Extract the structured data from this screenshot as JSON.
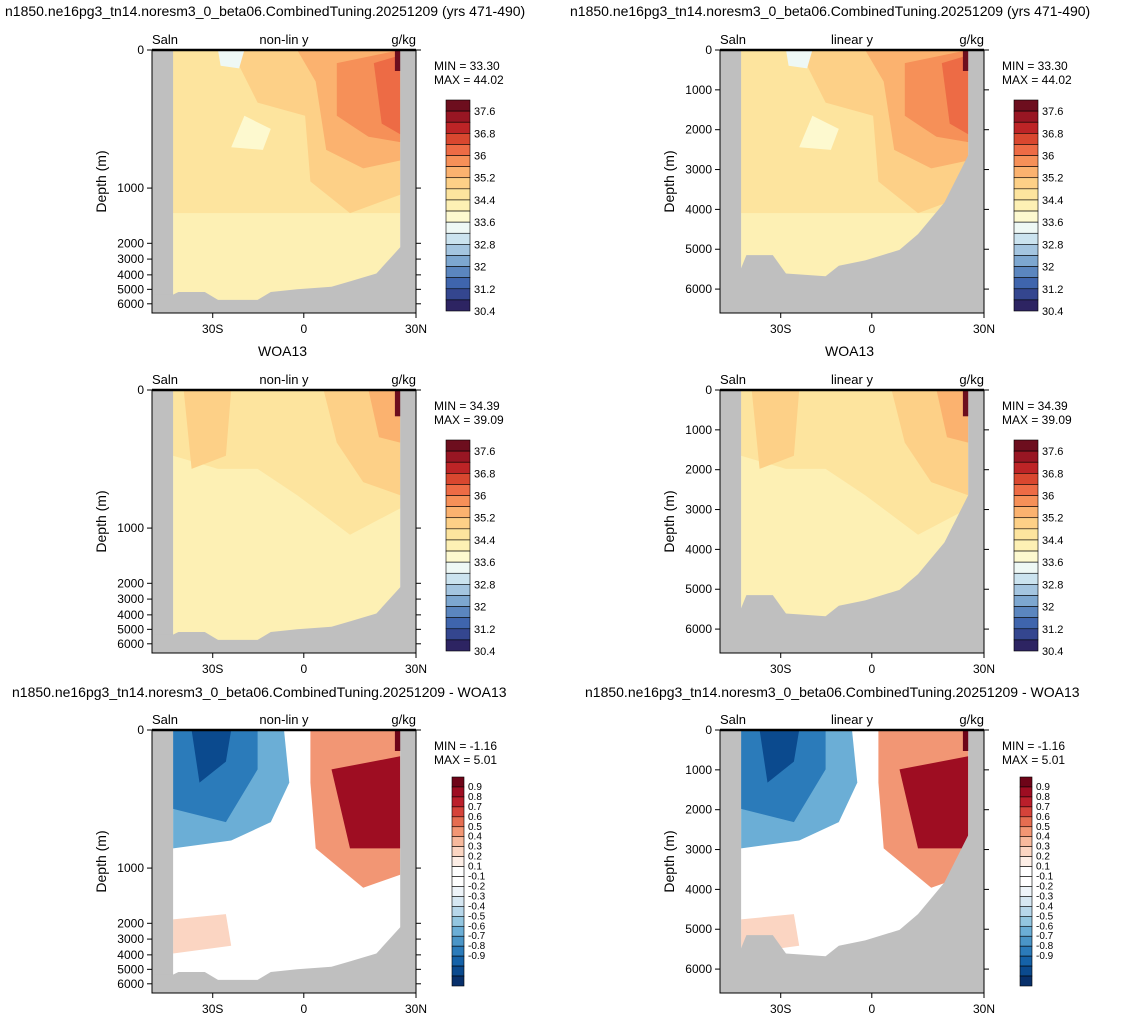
{
  "row_titles": [
    {
      "left": "n1850.ne16pg3_tn14.noresm3_0_beta06.CombinedTuning.20251209 (yrs 471-490)",
      "right": "n1850.ne16pg3_tn14.noresm3_0_beta06.CombinedTuning.20251209 (yrs 471-490)"
    },
    {
      "left": "WOA13",
      "right": "WOA13"
    },
    {
      "left": "n1850.ne16pg3_tn14.noresm3_0_beta06.CombinedTuning.20251209 - WOA13",
      "right": "n1850.ne16pg3_tn14.noresm3_0_beta06.CombinedTuning.20251209 - WOA13"
    }
  ],
  "colors": {
    "land": "#bfbfbf",
    "abs_levels": [
      "#2d2462",
      "#34468f",
      "#3f65ad",
      "#5b86bf",
      "#7da7d0",
      "#a4c5e0",
      "#cbe3ef",
      "#eef8f5",
      "#fdf9cf",
      "#fdf0b4",
      "#fde49e",
      "#fdd087",
      "#fbb26f",
      "#f69058",
      "#ed6b45",
      "#d9472f",
      "#bd2426",
      "#981623",
      "#6d0e1e"
    ],
    "diff_levels": [
      "#08306b",
      "#0b4a8e",
      "#1562a8",
      "#2b7bba",
      "#4a95c7",
      "#6baed6",
      "#93c6e0",
      "#b7d7ea",
      "#d6e7f2",
      "#eef4f9",
      "#ffffff",
      "#ffffff",
      "#fdeee6",
      "#fbd5c2",
      "#f7b99d",
      "#f29674",
      "#e56d51",
      "#d5433a",
      "#bb1f2b",
      "#9e0d22",
      "#6e0418"
    ]
  },
  "charts": [
    {
      "id": "model-nonlin",
      "min_label": "MIN =  33.30",
      "max_label": "MAX =  44.02",
      "chart_data": {
        "type": "heatmap",
        "variable": "Saln",
        "units": "g/kg",
        "title": "non-lin y",
        "xlabel": "",
        "ylabel": "Depth (m)",
        "x_ticks": [
          "30S",
          "0",
          "30N"
        ],
        "y_ticks": [
          "0",
          "1000",
          "2000",
          "3000",
          "4000",
          "5000",
          "6000"
        ],
        "y_scale": "non-linear",
        "colorbar_labels": [
          "37.6",
          "36.8",
          "36",
          "35.2",
          "34.4",
          "33.6",
          "32.8",
          "32",
          "31.2",
          "30.4"
        ],
        "min": 33.3,
        "max": 44.02
      }
    },
    {
      "id": "model-lin",
      "min_label": "MIN =  33.30",
      "max_label": "MAX =  44.02",
      "chart_data": {
        "type": "heatmap",
        "variable": "Saln",
        "units": "g/kg",
        "title": "linear y",
        "xlabel": "",
        "ylabel": "Depth (m)",
        "x_ticks": [
          "30S",
          "0",
          "30N"
        ],
        "y_ticks": [
          "0",
          "1000",
          "2000",
          "3000",
          "4000",
          "5000",
          "6000"
        ],
        "y_scale": "linear",
        "colorbar_labels": [
          "37.6",
          "36.8",
          "36",
          "35.2",
          "34.4",
          "33.6",
          "32.8",
          "32",
          "31.2",
          "30.4"
        ],
        "min": 33.3,
        "max": 44.02
      }
    },
    {
      "id": "obs-nonlin",
      "min_label": "MIN =  34.39",
      "max_label": "MAX =  39.09",
      "chart_data": {
        "type": "heatmap",
        "variable": "Saln",
        "units": "g/kg",
        "title": "non-lin y",
        "xlabel": "",
        "ylabel": "Depth (m)",
        "x_ticks": [
          "30S",
          "0",
          "30N"
        ],
        "y_ticks": [
          "0",
          "1000",
          "2000",
          "3000",
          "4000",
          "5000",
          "6000"
        ],
        "y_scale": "non-linear",
        "colorbar_labels": [
          "37.6",
          "36.8",
          "36",
          "35.2",
          "34.4",
          "33.6",
          "32.8",
          "32",
          "31.2",
          "30.4"
        ],
        "min": 34.39,
        "max": 39.09
      }
    },
    {
      "id": "obs-lin",
      "min_label": "MIN =  34.39",
      "max_label": "MAX =  39.09",
      "chart_data": {
        "type": "heatmap",
        "variable": "Saln",
        "units": "g/kg",
        "title": "linear y",
        "xlabel": "",
        "ylabel": "Depth (m)",
        "x_ticks": [
          "30S",
          "0",
          "30N"
        ],
        "y_ticks": [
          "0",
          "1000",
          "2000",
          "3000",
          "4000",
          "5000",
          "6000"
        ],
        "y_scale": "linear",
        "colorbar_labels": [
          "37.6",
          "36.8",
          "36",
          "35.2",
          "34.4",
          "33.6",
          "32.8",
          "32",
          "31.2",
          "30.4"
        ],
        "min": 34.39,
        "max": 39.09
      }
    },
    {
      "id": "diff-nonlin",
      "min_label": "MIN =  -1.16",
      "max_label": "MAX =   5.01",
      "chart_data": {
        "type": "heatmap",
        "variable": "Saln",
        "units": "g/kg",
        "title": "non-lin y",
        "xlabel": "",
        "ylabel": "Depth (m)",
        "x_ticks": [
          "30S",
          "0",
          "30N"
        ],
        "y_ticks": [
          "0",
          "1000",
          "2000",
          "3000",
          "4000",
          "5000",
          "6000"
        ],
        "y_scale": "non-linear",
        "colorbar_labels": [
          "0.9",
          "0.8",
          "0.7",
          "0.6",
          "0.5",
          "0.4",
          "0.3",
          "0.2",
          "0.1",
          "-0.1",
          "-0.2",
          "-0.3",
          "-0.4",
          "-0.5",
          "-0.6",
          "-0.7",
          "-0.8",
          "-0.9"
        ],
        "min": -1.16,
        "max": 5.01
      }
    },
    {
      "id": "diff-lin",
      "min_label": "MIN =  -1.16",
      "max_label": "MAX =   5.01",
      "chart_data": {
        "type": "heatmap",
        "variable": "Saln",
        "units": "g/kg",
        "title": "linear y",
        "xlabel": "",
        "ylabel": "Depth (m)",
        "x_ticks": [
          "30S",
          "0",
          "30N"
        ],
        "y_ticks": [
          "0",
          "1000",
          "2000",
          "3000",
          "4000",
          "5000",
          "6000"
        ],
        "y_scale": "linear",
        "colorbar_labels": [
          "0.9",
          "0.8",
          "0.7",
          "0.6",
          "0.5",
          "0.4",
          "0.3",
          "0.2",
          "0.1",
          "-0.1",
          "-0.2",
          "-0.3",
          "-0.4",
          "-0.5",
          "-0.6",
          "-0.7",
          "-0.8",
          "-0.9"
        ],
        "min": -1.16,
        "max": 5.01
      }
    }
  ]
}
